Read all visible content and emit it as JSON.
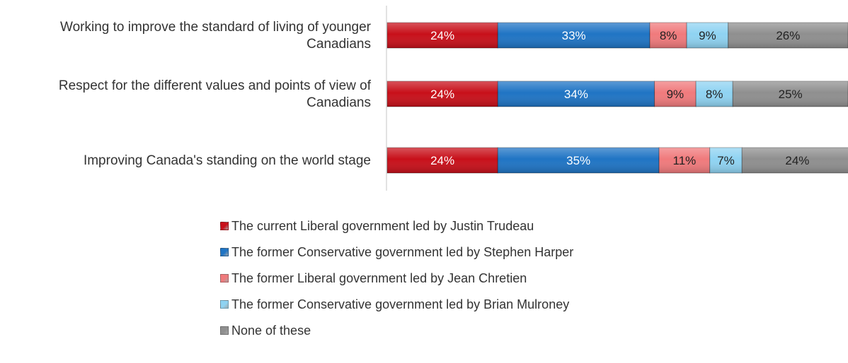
{
  "chart_data": {
    "type": "bar",
    "orientation": "horizontal",
    "stacked": true,
    "categories": [
      [
        "Working to improve the standard of living of younger",
        "Canadians"
      ],
      [
        "Respect for the different values and points of view of",
        "Canadians"
      ],
      [
        "Improving Canada's standing on the world stage"
      ]
    ],
    "series": [
      {
        "name": "The current Liberal government led by Justin Trudeau",
        "values": [
          24,
          24,
          24
        ],
        "labels": [
          "24%",
          "24%",
          "24%"
        ],
        "color": "#c8101a",
        "label_color": "#ffffff"
      },
      {
        "name": "The former Conservative government led by Stephen Harper",
        "values": [
          33,
          34,
          35
        ],
        "labels": [
          "33%",
          "34%",
          "35%"
        ],
        "color": "#1f74c4",
        "label_color": "#ffffff"
      },
      {
        "name": "The former Liberal government led by Jean Chretien",
        "values": [
          8,
          9,
          11
        ],
        "labels": [
          "8%",
          "9%",
          "11%"
        ],
        "color": "#f07a7c",
        "label_color": "#222222"
      },
      {
        "name": "The former Conservative government led by Brian Mulroney",
        "values": [
          9,
          8,
          7
        ],
        "labels": [
          "9%",
          "8%",
          "7%"
        ],
        "color": "#8fd3f2",
        "label_color": "#222222"
      },
      {
        "name": "None of these",
        "values": [
          26,
          25,
          24
        ],
        "labels": [
          "26%",
          "25%",
          "24%"
        ],
        "color": "#8f8f8f",
        "label_color": "#222222"
      }
    ],
    "xlim": [
      0,
      100
    ],
    "grid": false,
    "legend_position": "bottom"
  }
}
